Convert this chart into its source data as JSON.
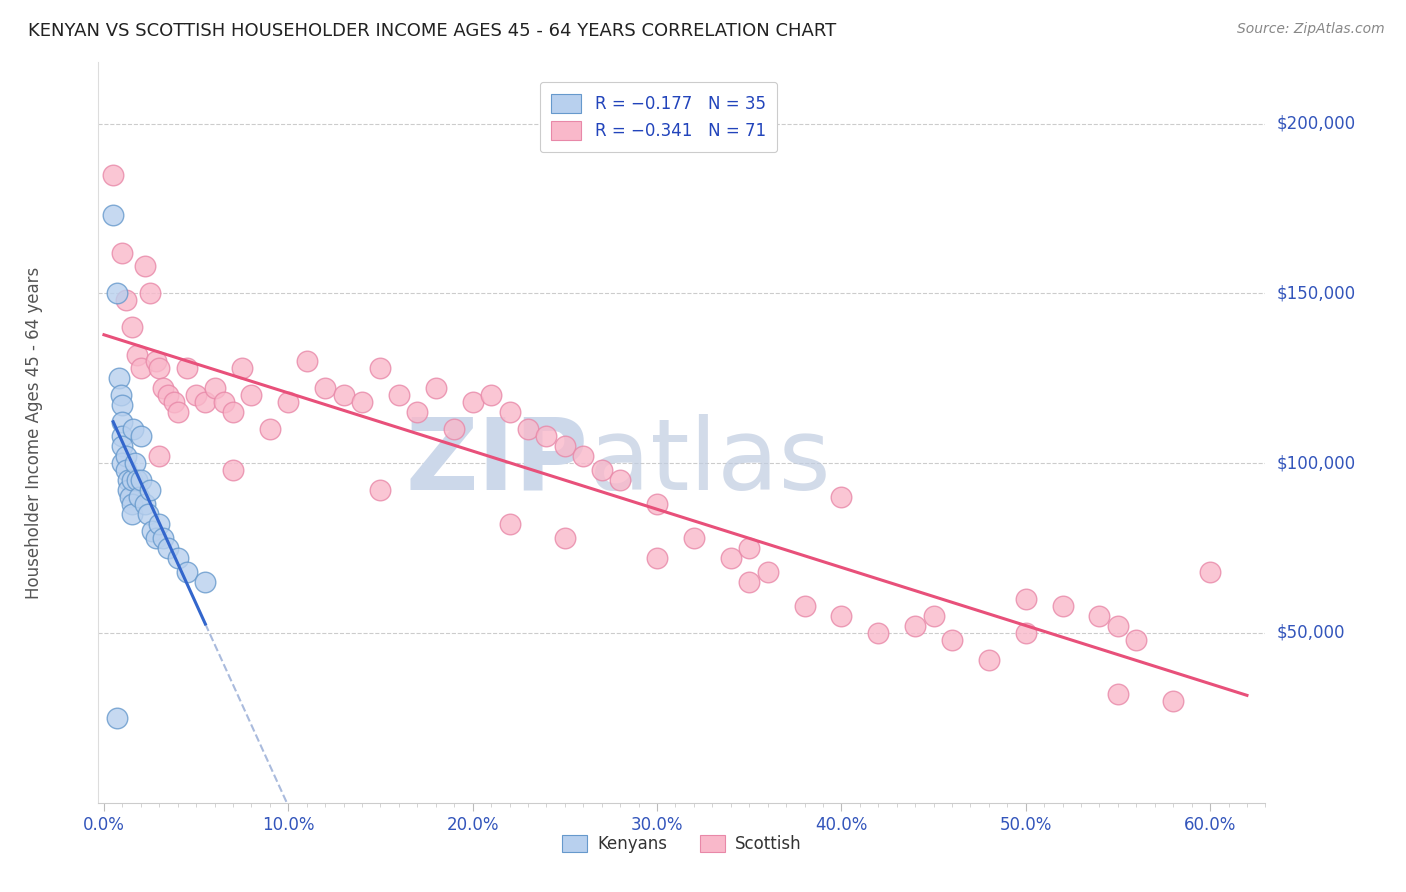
{
  "title": "KENYAN VS SCOTTISH HOUSEHOLDER INCOME AGES 45 - 64 YEARS CORRELATION CHART",
  "source": "Source: ZipAtlas.com",
  "ylabel": "Householder Income Ages 45 - 64 years",
  "xlabel_ticks": [
    "0.0%",
    "",
    "",
    "",
    "",
    "",
    "",
    "",
    "",
    "",
    "10.0%",
    "",
    "",
    "",
    "",
    "",
    "",
    "",
    "",
    "",
    "20.0%",
    "",
    "",
    "",
    "",
    "",
    "",
    "",
    "",
    "",
    "30.0%",
    "",
    "",
    "",
    "",
    "",
    "",
    "",
    "",
    "",
    "40.0%",
    "",
    "",
    "",
    "",
    "",
    "",
    "",
    "",
    "",
    "50.0%",
    "",
    "",
    "",
    "",
    "",
    "",
    "",
    "",
    "",
    "60.0%"
  ],
  "xlabel_vals": [
    0.0,
    0.01,
    0.02,
    0.03,
    0.04,
    0.05,
    0.06,
    0.07,
    0.08,
    0.09,
    0.1,
    0.11,
    0.12,
    0.13,
    0.14,
    0.15,
    0.16,
    0.17,
    0.18,
    0.19,
    0.2,
    0.21,
    0.22,
    0.23,
    0.24,
    0.25,
    0.26,
    0.27,
    0.28,
    0.29,
    0.3,
    0.31,
    0.32,
    0.33,
    0.34,
    0.35,
    0.36,
    0.37,
    0.38,
    0.39,
    0.4,
    0.41,
    0.42,
    0.43,
    0.44,
    0.45,
    0.46,
    0.47,
    0.48,
    0.49,
    0.5,
    0.51,
    0.52,
    0.53,
    0.54,
    0.55,
    0.56,
    0.57,
    0.58,
    0.59,
    0.6
  ],
  "ytick_labels": [
    "$50,000",
    "$100,000",
    "$150,000",
    "$200,000"
  ],
  "ytick_vals": [
    50000,
    100000,
    150000,
    200000
  ],
  "legend_text_color": "#2244bb",
  "kenyans_x": [
    0.005,
    0.007,
    0.008,
    0.009,
    0.01,
    0.01,
    0.01,
    0.01,
    0.01,
    0.012,
    0.012,
    0.013,
    0.013,
    0.014,
    0.015,
    0.015,
    0.015,
    0.016,
    0.017,
    0.018,
    0.019,
    0.02,
    0.02,
    0.022,
    0.024,
    0.025,
    0.026,
    0.028,
    0.03,
    0.032,
    0.035,
    0.04,
    0.045,
    0.055,
    0.007
  ],
  "kenyans_y": [
    173000,
    150000,
    125000,
    120000,
    117000,
    112000,
    108000,
    105000,
    100000,
    102000,
    98000,
    95000,
    92000,
    90000,
    95000,
    88000,
    85000,
    110000,
    100000,
    95000,
    90000,
    108000,
    95000,
    88000,
    85000,
    92000,
    80000,
    78000,
    82000,
    78000,
    75000,
    72000,
    68000,
    65000,
    25000
  ],
  "scottish_x": [
    0.005,
    0.01,
    0.012,
    0.015,
    0.018,
    0.02,
    0.022,
    0.025,
    0.028,
    0.03,
    0.032,
    0.035,
    0.038,
    0.04,
    0.045,
    0.05,
    0.055,
    0.06,
    0.065,
    0.07,
    0.075,
    0.08,
    0.09,
    0.1,
    0.11,
    0.12,
    0.13,
    0.14,
    0.15,
    0.16,
    0.17,
    0.18,
    0.19,
    0.2,
    0.21,
    0.22,
    0.23,
    0.24,
    0.25,
    0.26,
    0.27,
    0.28,
    0.3,
    0.32,
    0.34,
    0.35,
    0.36,
    0.38,
    0.4,
    0.42,
    0.44,
    0.46,
    0.48,
    0.5,
    0.52,
    0.54,
    0.55,
    0.56,
    0.58,
    0.6,
    0.03,
    0.07,
    0.15,
    0.22,
    0.25,
    0.3,
    0.35,
    0.4,
    0.45,
    0.5,
    0.55
  ],
  "scottish_y": [
    185000,
    162000,
    148000,
    140000,
    132000,
    128000,
    158000,
    150000,
    130000,
    128000,
    122000,
    120000,
    118000,
    115000,
    128000,
    120000,
    118000,
    122000,
    118000,
    115000,
    128000,
    120000,
    110000,
    118000,
    130000,
    122000,
    120000,
    118000,
    128000,
    120000,
    115000,
    122000,
    110000,
    118000,
    120000,
    115000,
    110000,
    108000,
    105000,
    102000,
    98000,
    95000,
    88000,
    78000,
    72000,
    75000,
    68000,
    58000,
    55000,
    50000,
    52000,
    48000,
    42000,
    60000,
    58000,
    55000,
    52000,
    48000,
    30000,
    68000,
    102000,
    98000,
    92000,
    82000,
    78000,
    72000,
    65000,
    90000,
    55000,
    50000,
    32000
  ],
  "kenyan_line_color": "#3366cc",
  "scottish_line_color": "#e8507a",
  "dashed_line_color": "#aabbdd",
  "bg_color": "#ffffff",
  "plot_bg_color": "#ffffff",
  "grid_color": "#cccccc",
  "title_color": "#222222",
  "axis_label_color": "#555555",
  "tick_color": "#3355bb",
  "watermark_zip_color": "#ccd8ea",
  "watermark_atlas_color": "#c0cce0"
}
